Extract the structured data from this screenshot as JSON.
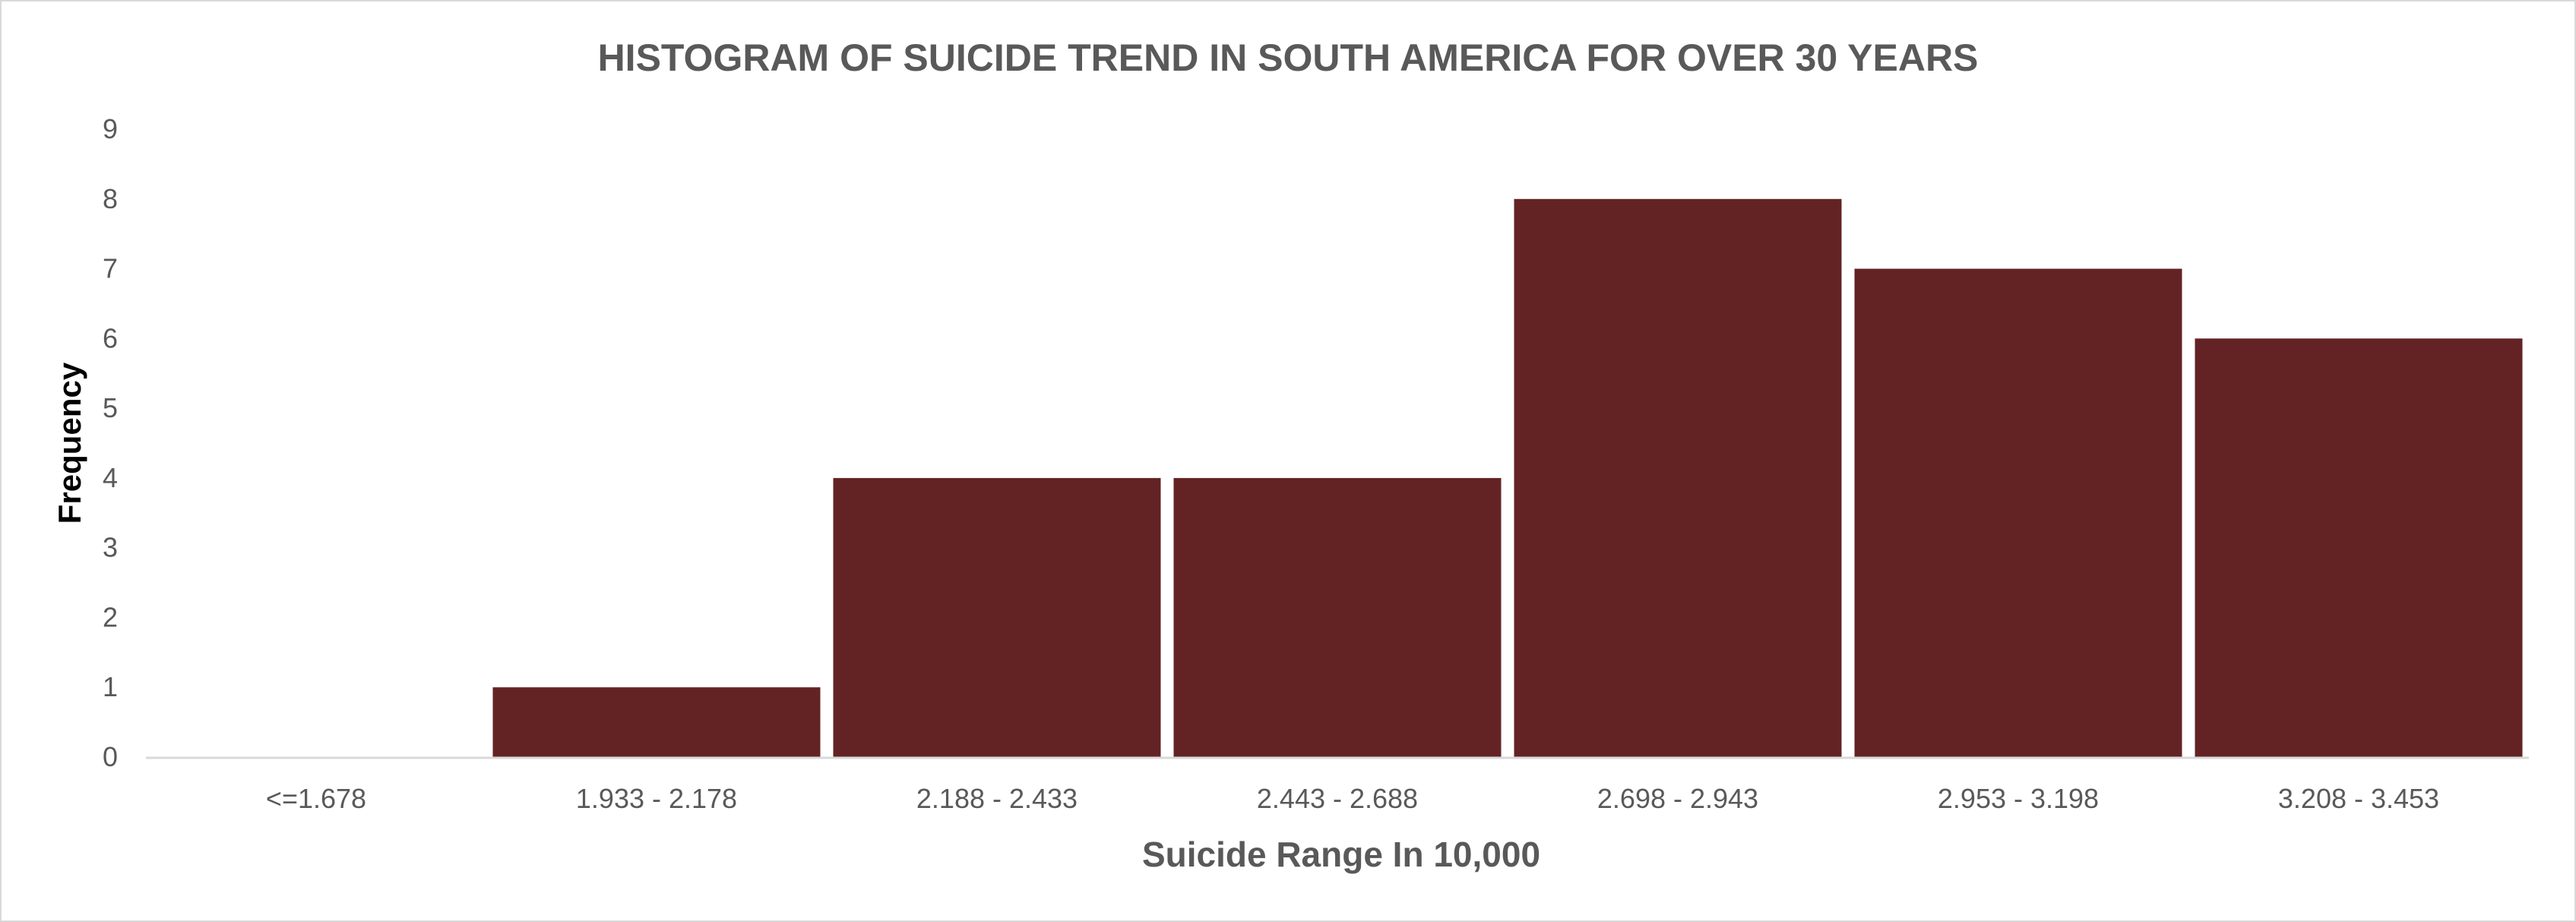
{
  "chart_data": {
    "type": "bar",
    "title": "HISTOGRAM OF SUICIDE TREND IN SOUTH AMERICA  FOR OVER 30 YEARS",
    "xlabel": "Suicide Range In 10,000",
    "ylabel": "Frequency",
    "categories": [
      "<=1.678",
      "1.933 - 2.178",
      "2.188 - 2.433",
      "2.443 - 2.688",
      "2.698 - 2.943",
      "2.953 - 3.198",
      "3.208 - 3.453"
    ],
    "values": [
      0,
      1,
      4,
      4,
      8,
      7,
      6
    ],
    "ylim": [
      0,
      9
    ],
    "yticks": [
      0,
      1,
      2,
      3,
      4,
      5,
      6,
      7,
      8,
      9
    ],
    "grid": false,
    "legend": "none",
    "colors": {
      "bar": "#632325",
      "axis": "#d9d9d9",
      "text": "#595959"
    }
  }
}
